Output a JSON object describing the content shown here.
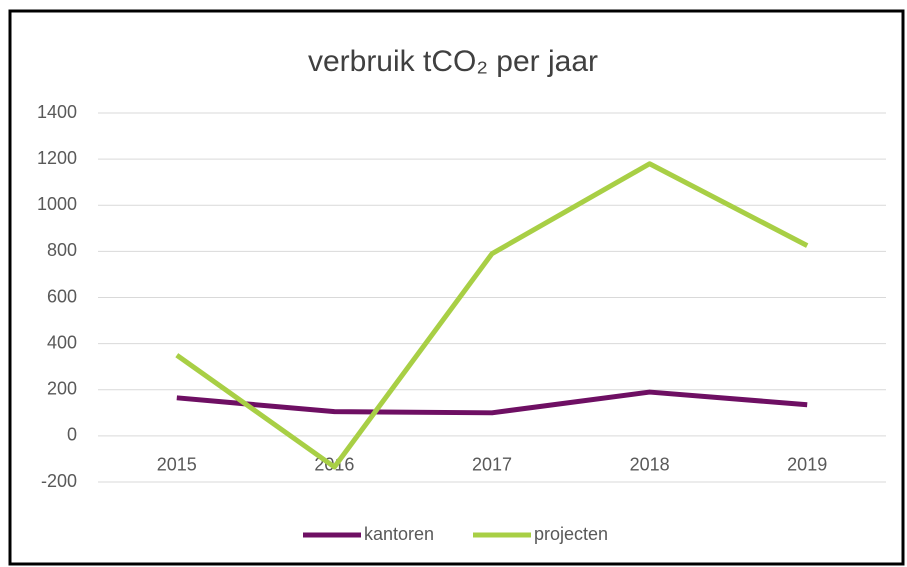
{
  "chart_data": {
    "type": "line",
    "title": "verbruik tCO₂ per jaar",
    "categories": [
      "2015",
      "2016",
      "2017",
      "2018",
      "2019"
    ],
    "series": [
      {
        "name": "kantoren",
        "color": "#6e0f63",
        "values": [
          165,
          105,
          100,
          190,
          135
        ]
      },
      {
        "name": "projecten",
        "color": "#a8cf45",
        "values": [
          350,
          -135,
          790,
          1180,
          825
        ]
      }
    ],
    "ylim": [
      -200,
      1400
    ],
    "yticks": [
      -200,
      0,
      200,
      400,
      600,
      800,
      1000,
      1200,
      1400
    ],
    "grid": true,
    "legend": "bottom"
  }
}
